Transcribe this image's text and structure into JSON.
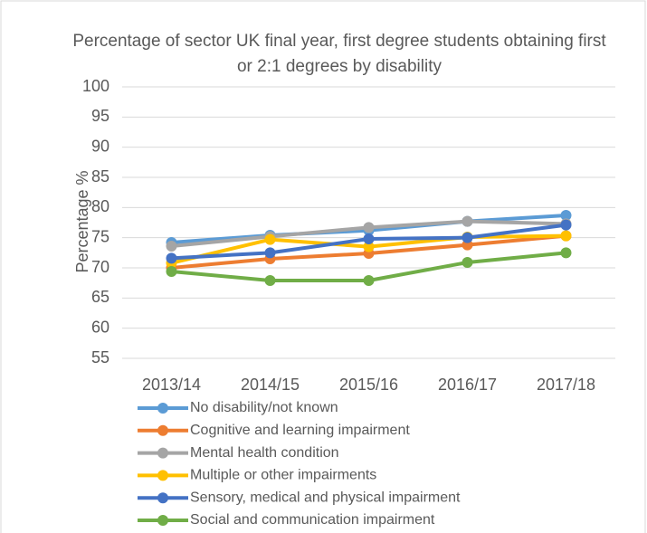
{
  "chart_data": {
    "type": "line",
    "title": "Percentage of sector UK final year, first degree students obtaining first or 2:1 degrees by disability",
    "y_axis_label": "Percentage %",
    "categories": [
      "2013/14",
      "2014/15",
      "2015/16",
      "2016/17",
      "2017/18"
    ],
    "series": [
      {
        "name": "No disability/not known",
        "color": "#5b9bd5",
        "values": [
          74.2,
          75.4,
          76.2,
          77.7,
          78.7
        ]
      },
      {
        "name": "Cognitive and learning impairment",
        "color": "#ed7d31",
        "values": [
          70.0,
          71.5,
          72.4,
          73.8,
          75.3
        ]
      },
      {
        "name": "Mental health condition",
        "color": "#a5a5a5",
        "values": [
          73.6,
          75.2,
          76.7,
          77.7,
          77.3
        ]
      },
      {
        "name": "Multiple or other impairments",
        "color": "#ffc000",
        "values": [
          70.8,
          74.7,
          73.5,
          75.1,
          75.3
        ]
      },
      {
        "name": "Sensory, medical and physical impairment",
        "color": "#4472c4",
        "values": [
          71.6,
          72.5,
          74.8,
          75.0,
          77.1
        ]
      },
      {
        "name": "Social and communication impairment",
        "color": "#70ad47",
        "values": [
          69.4,
          67.9,
          67.9,
          70.9,
          72.5
        ]
      }
    ],
    "ylim": [
      55,
      100
    ],
    "yticks": [
      55,
      60,
      65,
      70,
      75,
      80,
      85,
      90,
      95,
      100
    ],
    "grid": true
  }
}
